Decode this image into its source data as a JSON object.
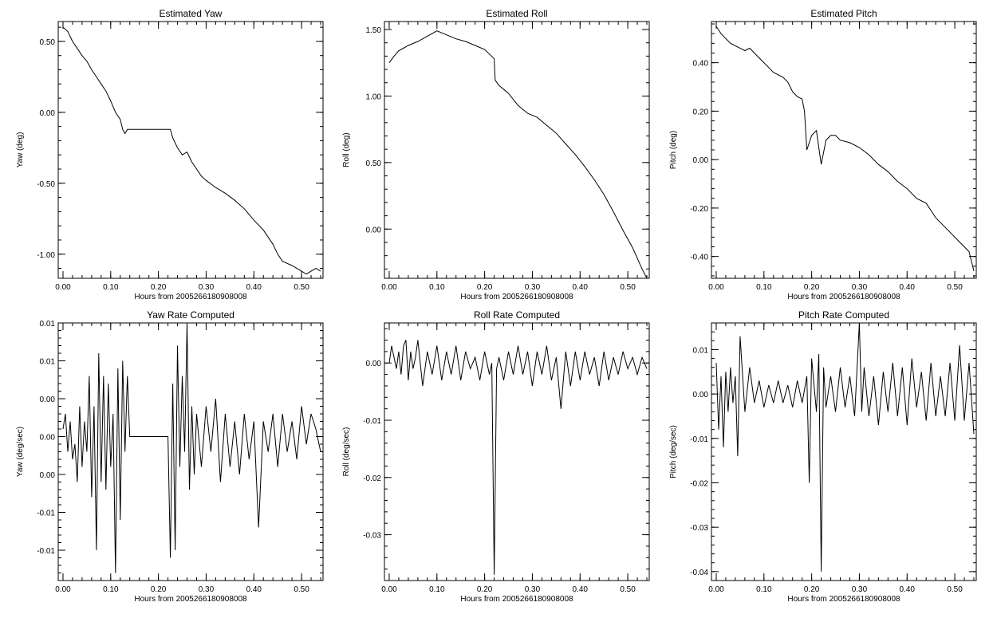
{
  "chart_data": [
    {
      "type": "line",
      "title": "Estimated Yaw",
      "xlabel": "Hours from 2005266180908008",
      "ylabel": "Yaw (deg)",
      "xlim": [
        -0.01,
        0.545
      ],
      "ylim": [
        -1.17,
        0.64
      ],
      "xticks": [
        0.0,
        0.1,
        0.2,
        0.3,
        0.4,
        0.5
      ],
      "xtick_labels": [
        "0.00",
        "0.10",
        "0.20",
        "0.30",
        "0.40",
        "0.50"
      ],
      "yticks": [
        -1.0,
        -0.5,
        0.0,
        0.5
      ],
      "ytick_labels": [
        "-1.00",
        "-0.50",
        "0.00",
        "0.50"
      ],
      "series": [
        {
          "x": [
            0.0,
            0.01,
            0.02,
            0.03,
            0.04,
            0.05,
            0.06,
            0.07,
            0.08,
            0.09,
            0.1,
            0.11,
            0.12,
            0.125,
            0.13,
            0.135,
            0.14,
            0.2,
            0.225,
            0.23,
            0.24,
            0.25,
            0.26,
            0.27,
            0.28,
            0.29,
            0.3,
            0.32,
            0.34,
            0.36,
            0.38,
            0.4,
            0.42,
            0.44,
            0.45,
            0.46,
            0.48,
            0.5,
            0.51,
            0.52,
            0.53,
            0.54
          ],
          "values": [
            0.6,
            0.57,
            0.5,
            0.45,
            0.4,
            0.36,
            0.3,
            0.25,
            0.2,
            0.15,
            0.08,
            0.0,
            -0.05,
            -0.12,
            -0.15,
            -0.12,
            -0.12,
            -0.12,
            -0.12,
            -0.18,
            -0.25,
            -0.3,
            -0.28,
            -0.35,
            -0.4,
            -0.45,
            -0.48,
            -0.53,
            -0.57,
            -0.62,
            -0.68,
            -0.76,
            -0.83,
            -0.93,
            -1.0,
            -1.05,
            -1.08,
            -1.12,
            -1.14,
            -1.12,
            -1.1,
            -1.12
          ]
        }
      ]
    },
    {
      "type": "line",
      "title": "Estimated Roll",
      "xlabel": "Hours from 2005266180908008",
      "ylabel": "Roll (deg)",
      "xlim": [
        -0.01,
        0.545
      ],
      "ylim": [
        -0.37,
        1.56
      ],
      "xticks": [
        0.0,
        0.1,
        0.2,
        0.3,
        0.4,
        0.5
      ],
      "xtick_labels": [
        "0.00",
        "0.10",
        "0.20",
        "0.30",
        "0.40",
        "0.50"
      ],
      "yticks": [
        0.0,
        0.5,
        1.0,
        1.5
      ],
      "ytick_labels": [
        "0.00",
        "0.50",
        "1.00",
        "1.50"
      ],
      "series": [
        {
          "x": [
            0.0,
            0.01,
            0.02,
            0.04,
            0.06,
            0.08,
            0.1,
            0.12,
            0.14,
            0.16,
            0.18,
            0.2,
            0.22,
            0.222,
            0.23,
            0.25,
            0.27,
            0.29,
            0.31,
            0.33,
            0.35,
            0.37,
            0.39,
            0.41,
            0.43,
            0.45,
            0.47,
            0.49,
            0.51,
            0.53,
            0.54
          ],
          "values": [
            1.25,
            1.3,
            1.34,
            1.38,
            1.41,
            1.45,
            1.49,
            1.46,
            1.43,
            1.41,
            1.38,
            1.35,
            1.28,
            1.12,
            1.08,
            1.02,
            0.93,
            0.87,
            0.84,
            0.78,
            0.72,
            0.64,
            0.56,
            0.47,
            0.37,
            0.26,
            0.13,
            -0.01,
            -0.14,
            -0.3,
            -0.37
          ]
        }
      ]
    },
    {
      "type": "line",
      "title": "Estimated Pitch",
      "xlabel": "Hours from 2005266180908008",
      "ylabel": "Pitch (deg)",
      "xlim": [
        -0.01,
        0.545
      ],
      "ylim": [
        -0.49,
        0.57
      ],
      "xticks": [
        0.0,
        0.1,
        0.2,
        0.3,
        0.4,
        0.5
      ],
      "xtick_labels": [
        "0.00",
        "0.10",
        "0.20",
        "0.30",
        "0.40",
        "0.50"
      ],
      "yticks": [
        -0.4,
        -0.2,
        0.0,
        0.2,
        0.4
      ],
      "ytick_labels": [
        "-0.40",
        "-0.20",
        "0.00",
        "0.20",
        "0.40"
      ],
      "series": [
        {
          "x": [
            0.0,
            0.01,
            0.02,
            0.03,
            0.04,
            0.05,
            0.06,
            0.07,
            0.08,
            0.09,
            0.1,
            0.11,
            0.12,
            0.13,
            0.14,
            0.15,
            0.16,
            0.17,
            0.18,
            0.185,
            0.19,
            0.195,
            0.2,
            0.21,
            0.215,
            0.22,
            0.23,
            0.24,
            0.25,
            0.26,
            0.28,
            0.3,
            0.32,
            0.34,
            0.36,
            0.38,
            0.4,
            0.42,
            0.44,
            0.46,
            0.48,
            0.5,
            0.52,
            0.53,
            0.54
          ],
          "values": [
            0.55,
            0.52,
            0.5,
            0.48,
            0.47,
            0.46,
            0.45,
            0.46,
            0.44,
            0.42,
            0.4,
            0.38,
            0.36,
            0.35,
            0.34,
            0.32,
            0.28,
            0.26,
            0.25,
            0.2,
            0.04,
            0.07,
            0.1,
            0.12,
            0.05,
            -0.02,
            0.08,
            0.1,
            0.1,
            0.08,
            0.07,
            0.05,
            0.02,
            -0.02,
            -0.05,
            -0.09,
            -0.12,
            -0.16,
            -0.18,
            -0.24,
            -0.28,
            -0.32,
            -0.36,
            -0.38,
            -0.46
          ]
        }
      ]
    },
    {
      "type": "line",
      "title": "Yaw Rate Computed",
      "xlabel": "Hours from 2005266180908008",
      "ylabel": "Yaw (deg/sec)",
      "xlim": [
        -0.01,
        0.545
      ],
      "ylim": [
        -0.019,
        0.015
      ],
      "xticks": [
        0.0,
        0.1,
        0.2,
        0.3,
        0.4,
        0.5
      ],
      "xtick_labels": [
        "0.00",
        "0.10",
        "0.20",
        "0.30",
        "0.40",
        "0.50"
      ],
      "yticks": [
        -0.015,
        -0.01,
        -0.005,
        0.0,
        0.005,
        0.01,
        0.015
      ],
      "ytick_labels": [
        "-0.01",
        "-0.01",
        "0.00",
        "0.00",
        "0.00",
        "0.01",
        "0.01"
      ],
      "series": [
        {
          "x": [
            0.0,
            0.005,
            0.01,
            0.015,
            0.02,
            0.025,
            0.03,
            0.035,
            0.04,
            0.045,
            0.05,
            0.055,
            0.06,
            0.065,
            0.07,
            0.075,
            0.08,
            0.085,
            0.09,
            0.095,
            0.1,
            0.105,
            0.11,
            0.115,
            0.12,
            0.125,
            0.13,
            0.135,
            0.14,
            0.22,
            0.225,
            0.23,
            0.235,
            0.24,
            0.245,
            0.25,
            0.255,
            0.26,
            0.265,
            0.27,
            0.275,
            0.28,
            0.29,
            0.3,
            0.31,
            0.32,
            0.33,
            0.34,
            0.35,
            0.36,
            0.37,
            0.38,
            0.39,
            0.4,
            0.41,
            0.42,
            0.43,
            0.44,
            0.45,
            0.46,
            0.47,
            0.48,
            0.49,
            0.5,
            0.51,
            0.52,
            0.53,
            0.54
          ],
          "values": [
            0.001,
            0.003,
            -0.002,
            0.002,
            -0.003,
            -0.001,
            -0.006,
            0.004,
            -0.004,
            0.002,
            -0.002,
            0.008,
            -0.008,
            0.004,
            -0.015,
            0.011,
            -0.006,
            0.008,
            -0.007,
            0.007,
            -0.004,
            0.003,
            -0.018,
            0.009,
            -0.011,
            0.01,
            -0.002,
            0.008,
            0.0,
            0.0,
            -0.016,
            0.007,
            -0.015,
            0.012,
            -0.004,
            0.008,
            -0.002,
            0.015,
            -0.007,
            0.004,
            -0.005,
            0.003,
            -0.004,
            0.004,
            -0.002,
            0.005,
            -0.006,
            0.003,
            -0.004,
            0.002,
            -0.005,
            0.003,
            -0.003,
            0.002,
            -0.012,
            0.002,
            -0.002,
            0.003,
            -0.004,
            0.003,
            -0.002,
            0.002,
            -0.003,
            0.004,
            -0.001,
            0.003,
            0.001,
            -0.002
          ]
        }
      ]
    },
    {
      "type": "line",
      "title": "Roll Rate Computed",
      "xlabel": "Hours from 2005266180908008",
      "ylabel": "Roll (deg/sec)",
      "xlim": [
        -0.01,
        0.545
      ],
      "ylim": [
        -0.038,
        0.007
      ],
      "xticks": [
        0.0,
        0.1,
        0.2,
        0.3,
        0.4,
        0.5
      ],
      "xtick_labels": [
        "0.00",
        "0.10",
        "0.20",
        "0.30",
        "0.40",
        "0.50"
      ],
      "yticks": [
        -0.03,
        -0.02,
        -0.01,
        0.0
      ],
      "ytick_labels": [
        "-0.03",
        "-0.02",
        "-0.01",
        "0.00"
      ],
      "series": [
        {
          "x": [
            0.0,
            0.005,
            0.01,
            0.015,
            0.02,
            0.025,
            0.03,
            0.035,
            0.04,
            0.045,
            0.05,
            0.055,
            0.06,
            0.07,
            0.08,
            0.09,
            0.1,
            0.11,
            0.12,
            0.13,
            0.14,
            0.15,
            0.16,
            0.17,
            0.18,
            0.19,
            0.2,
            0.21,
            0.215,
            0.22,
            0.225,
            0.23,
            0.24,
            0.25,
            0.26,
            0.27,
            0.28,
            0.29,
            0.3,
            0.31,
            0.32,
            0.33,
            0.34,
            0.35,
            0.36,
            0.37,
            0.38,
            0.39,
            0.4,
            0.41,
            0.42,
            0.43,
            0.44,
            0.45,
            0.46,
            0.47,
            0.48,
            0.49,
            0.5,
            0.51,
            0.52,
            0.53,
            0.54
          ],
          "values": [
            0.0,
            0.003,
            0.001,
            -0.001,
            0.002,
            -0.002,
            0.003,
            0.004,
            -0.003,
            0.002,
            -0.001,
            0.001,
            0.004,
            -0.004,
            0.002,
            -0.002,
            0.003,
            -0.003,
            0.002,
            -0.002,
            0.003,
            -0.003,
            0.002,
            -0.001,
            0.001,
            -0.003,
            0.002,
            -0.002,
            0.0,
            -0.037,
            -0.001,
            0.001,
            -0.003,
            0.002,
            -0.002,
            0.003,
            -0.002,
            0.002,
            -0.004,
            0.002,
            -0.002,
            0.003,
            -0.003,
            0.001,
            -0.008,
            0.002,
            -0.004,
            0.002,
            -0.003,
            0.002,
            -0.002,
            0.001,
            -0.004,
            0.002,
            -0.003,
            0.001,
            -0.002,
            0.002,
            -0.001,
            0.001,
            -0.002,
            0.001,
            -0.001
          ]
        }
      ]
    },
    {
      "type": "line",
      "title": "Pitch Rate Computed",
      "xlabel": "Hours from 2005266180908008",
      "ylabel": "Pitch (deg/sec)",
      "xlim": [
        -0.01,
        0.545
      ],
      "ylim": [
        -0.042,
        0.016
      ],
      "xticks": [
        0.0,
        0.1,
        0.2,
        0.3,
        0.4,
        0.5
      ],
      "xtick_labels": [
        "0.00",
        "0.10",
        "0.20",
        "0.30",
        "0.40",
        "0.50"
      ],
      "yticks": [
        -0.04,
        -0.03,
        -0.02,
        -0.01,
        0.0,
        0.01
      ],
      "ytick_labels": [
        "-0.04",
        "-0.03",
        "-0.02",
        "-0.01",
        "0.00",
        "0.01"
      ],
      "series": [
        {
          "x": [
            0.0,
            0.005,
            0.01,
            0.015,
            0.02,
            0.025,
            0.03,
            0.035,
            0.04,
            0.045,
            0.05,
            0.06,
            0.07,
            0.08,
            0.09,
            0.1,
            0.11,
            0.12,
            0.13,
            0.14,
            0.15,
            0.16,
            0.17,
            0.18,
            0.19,
            0.195,
            0.2,
            0.21,
            0.215,
            0.22,
            0.225,
            0.23,
            0.24,
            0.25,
            0.26,
            0.27,
            0.28,
            0.29,
            0.3,
            0.305,
            0.31,
            0.32,
            0.33,
            0.34,
            0.35,
            0.36,
            0.37,
            0.38,
            0.39,
            0.4,
            0.41,
            0.42,
            0.43,
            0.44,
            0.45,
            0.46,
            0.47,
            0.48,
            0.49,
            0.5,
            0.51,
            0.52,
            0.53,
            0.54
          ],
          "values": [
            0.007,
            -0.008,
            0.004,
            -0.012,
            0.005,
            -0.004,
            0.006,
            -0.002,
            0.004,
            -0.014,
            0.013,
            -0.004,
            0.006,
            -0.002,
            0.003,
            -0.003,
            0.002,
            -0.002,
            0.003,
            -0.002,
            0.002,
            -0.003,
            0.003,
            -0.002,
            0.004,
            -0.02,
            0.008,
            -0.004,
            0.009,
            -0.04,
            0.006,
            -0.003,
            0.004,
            -0.004,
            0.006,
            -0.003,
            0.004,
            -0.005,
            0.016,
            -0.004,
            0.006,
            -0.005,
            0.004,
            -0.007,
            0.005,
            -0.004,
            0.007,
            -0.005,
            0.006,
            -0.007,
            0.008,
            -0.003,
            0.005,
            -0.006,
            0.007,
            -0.005,
            0.004,
            -0.005,
            0.007,
            -0.006,
            0.011,
            -0.006,
            0.007,
            -0.009
          ]
        }
      ]
    }
  ]
}
